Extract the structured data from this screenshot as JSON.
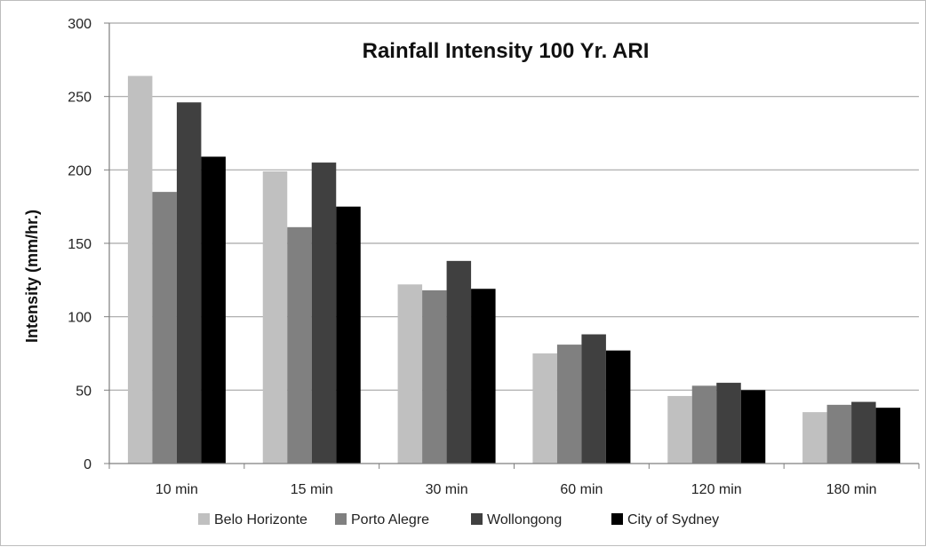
{
  "chart_data": {
    "type": "bar",
    "title": "Rainfall Intensity 100 Yr. ARI",
    "xlabel": "",
    "ylabel": "Intensity (mm/hr.)",
    "ylim": [
      0,
      300
    ],
    "yticks": [
      0,
      50,
      100,
      150,
      200,
      250,
      300
    ],
    "grid": true,
    "legend_position": "bottom",
    "categories": [
      "10 min",
      "15 min",
      "30 min",
      "60 min",
      "120 min",
      "180 min"
    ],
    "series": [
      {
        "name": "Belo Horizonte",
        "color": "#c0c0c0",
        "values": [
          264,
          199,
          122,
          75,
          46,
          35
        ]
      },
      {
        "name": "Porto Alegre",
        "color": "#808080",
        "values": [
          185,
          161,
          118,
          81,
          53,
          40
        ]
      },
      {
        "name": "Wollongong",
        "color": "#404040",
        "values": [
          246,
          205,
          138,
          88,
          55,
          42
        ]
      },
      {
        "name": "City of Sydney",
        "color": "#000000",
        "values": [
          209,
          175,
          119,
          77,
          50,
          38
        ]
      }
    ]
  }
}
